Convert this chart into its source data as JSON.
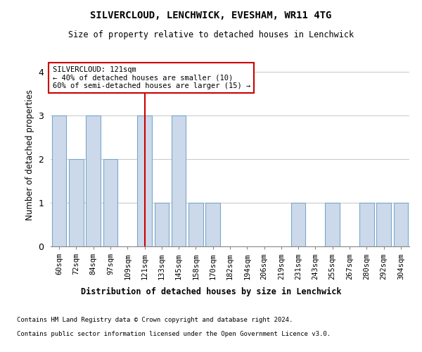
{
  "title1": "SILVERCLOUD, LENCHWICK, EVESHAM, WR11 4TG",
  "title2": "Size of property relative to detached houses in Lenchwick",
  "xlabel": "Distribution of detached houses by size in Lenchwick",
  "ylabel": "Number of detached properties",
  "categories": [
    "60sqm",
    "72sqm",
    "84sqm",
    "97sqm",
    "109sqm",
    "121sqm",
    "133sqm",
    "145sqm",
    "158sqm",
    "170sqm",
    "182sqm",
    "194sqm",
    "206sqm",
    "219sqm",
    "231sqm",
    "243sqm",
    "255sqm",
    "267sqm",
    "280sqm",
    "292sqm",
    "304sqm"
  ],
  "values": [
    3,
    2,
    3,
    2,
    0,
    3,
    1,
    3,
    1,
    1,
    0,
    0,
    0,
    0,
    1,
    0,
    1,
    0,
    1,
    1,
    1
  ],
  "highlight_index": 5,
  "bar_color": "#ccd9ea",
  "bar_edge_color": "#7aa7cc",
  "highlight_line_color": "#cc0000",
  "annotation_box_color": "#ffffff",
  "annotation_border_color": "#cc0000",
  "annotation_text_line1": "SILVERCLOUD: 121sqm",
  "annotation_text_line2": "← 40% of detached houses are smaller (10)",
  "annotation_text_line3": "60% of semi-detached houses are larger (15) →",
  "ylim": [
    0,
    4.2
  ],
  "yticks": [
    0,
    1,
    2,
    3,
    4
  ],
  "footer1": "Contains HM Land Registry data © Crown copyright and database right 2024.",
  "footer2": "Contains public sector information licensed under the Open Government Licence v3.0.",
  "bg_color": "#ffffff",
  "grid_color": "#cccccc"
}
